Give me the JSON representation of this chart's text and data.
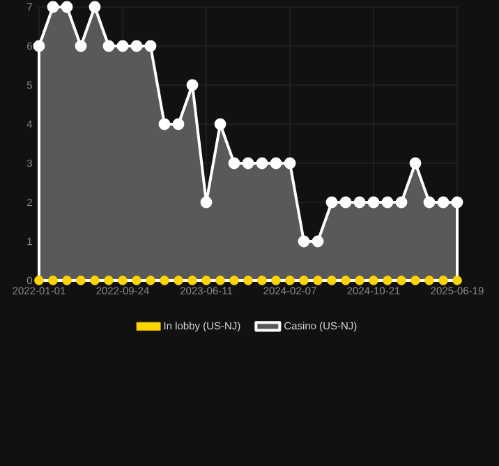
{
  "chart_data": {
    "type": "area",
    "categories": [
      "2022-01-01",
      null,
      null,
      null,
      null,
      null,
      "2022-09-24",
      null,
      null,
      null,
      null,
      null,
      "2023-06-11",
      null,
      null,
      null,
      null,
      null,
      "2024-02-07",
      null,
      null,
      null,
      null,
      null,
      "2024-10-21",
      null,
      null,
      null,
      null,
      null,
      "2025-06-19"
    ],
    "series": [
      {
        "name": "In lobby (US-NJ)",
        "type": "scatter",
        "color": "#ffd400",
        "values": [
          0,
          0,
          0,
          0,
          0,
          0,
          0,
          0,
          0,
          0,
          0,
          0,
          0,
          0,
          0,
          0,
          0,
          0,
          0,
          0,
          0,
          0,
          0,
          0,
          0,
          0,
          0,
          0,
          0,
          0,
          0
        ]
      },
      {
        "name": "Casino (US-NJ)",
        "color": "#ffffff",
        "values": [
          6,
          7,
          7,
          6,
          7,
          6,
          6,
          6,
          6,
          4,
          4,
          5,
          2,
          4,
          3,
          3,
          3,
          3,
          3,
          1,
          1,
          2,
          2,
          2,
          2,
          2,
          2,
          3,
          2,
          2,
          2
        ]
      }
    ],
    "ylim": [
      0,
      7
    ],
    "yticks": [
      0,
      1,
      2,
      3,
      4,
      5,
      6,
      7
    ],
    "grid": true,
    "legend": "bottom",
    "marker": "circle"
  }
}
